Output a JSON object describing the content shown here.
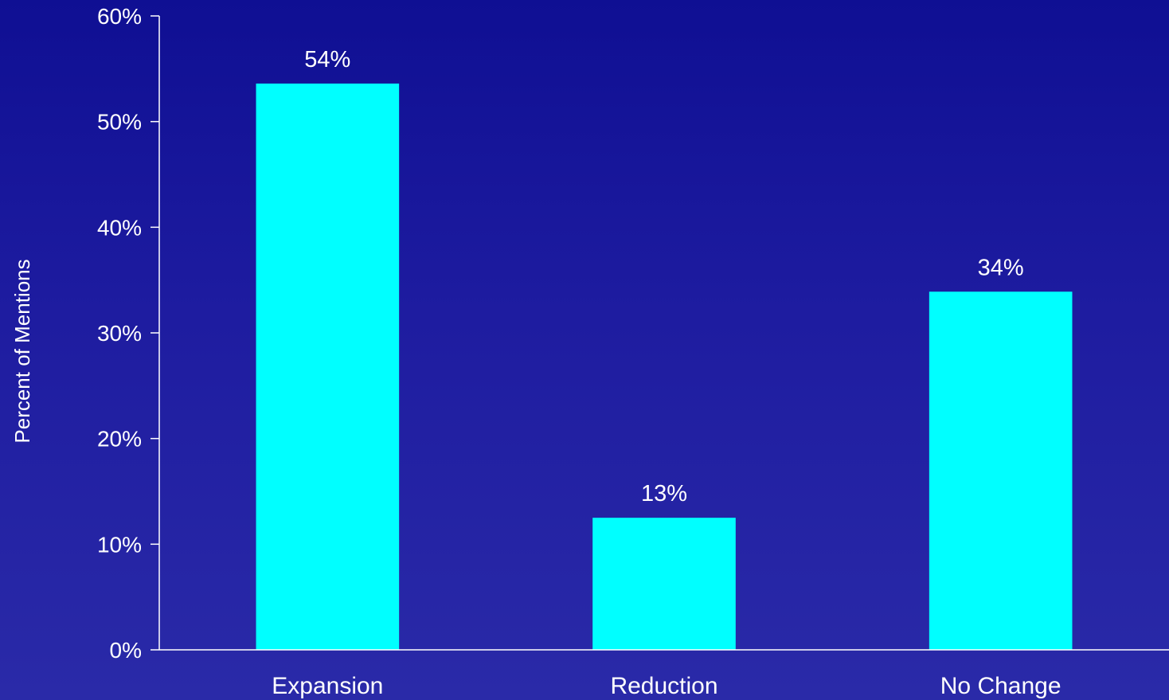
{
  "chart_data": {
    "type": "bar",
    "categories": [
      "Expansion",
      "Reduction",
      "No Change"
    ],
    "values": [
      53.6,
      12.5,
      33.9
    ],
    "data_labels": [
      "54%",
      "13%",
      "34%"
    ],
    "title": "",
    "xlabel": "",
    "ylabel": "Percent of Mentions",
    "ylim": [
      0,
      60
    ],
    "yticks": [
      0,
      10,
      20,
      30,
      40,
      50,
      60
    ],
    "ytick_labels": [
      "0%",
      "10%",
      "20%",
      "30%",
      "40%",
      "50%",
      "60%"
    ],
    "grid": false,
    "legend": "none",
    "bar_color": "#00ffff",
    "background_color": "#1a1a9c",
    "text_color": "#ffffff"
  }
}
